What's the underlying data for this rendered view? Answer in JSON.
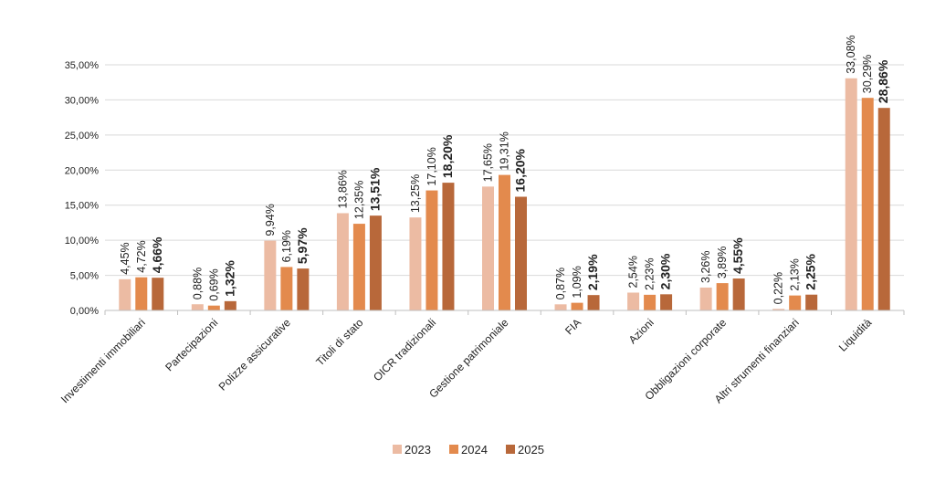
{
  "chart_data": {
    "type": "bar",
    "categories": [
      "Investimenti immobiliari",
      "Partecipazioni",
      "Polizze assicurative",
      "Titoli di stato",
      "OICR tradizionali",
      "Gestione patrimoniale",
      "FIA",
      "Azioni",
      "Obbligazioni corporate",
      "Altri strumenti finanziari",
      "Liquidità"
    ],
    "series": [
      {
        "name": "2023",
        "color": "#ecbba3",
        "values": [
          4.45,
          0.88,
          9.94,
          13.86,
          13.25,
          17.65,
          0.87,
          2.54,
          3.26,
          0.22,
          33.08
        ],
        "labels": [
          "4,45%",
          "0,88%",
          "9,94%",
          "13,86%",
          "13,25%",
          "17,65%",
          "0,87%",
          "2,54%",
          "3,26%",
          "0,22%",
          "33,08%"
        ]
      },
      {
        "name": "2024",
        "color": "#e38a4d",
        "values": [
          4.72,
          0.69,
          6.19,
          12.35,
          17.1,
          19.31,
          1.09,
          2.23,
          3.89,
          2.13,
          30.29
        ],
        "labels": [
          "4,72%",
          "0,69%",
          "6,19%",
          "12,35%",
          "17,10%",
          "19,31%",
          "1,09%",
          "2,23%",
          "3,89%",
          "2,13%",
          "30,29%"
        ]
      },
      {
        "name": "2025",
        "color": "#b8683a",
        "values": [
          4.66,
          1.32,
          5.97,
          13.51,
          18.2,
          16.2,
          2.19,
          2.3,
          4.55,
          2.25,
          28.86
        ],
        "labels": [
          "4,66%",
          "1,32%",
          "5,97%",
          "13,51%",
          "18,20%",
          "16,20%",
          "2,19%",
          "2,30%",
          "4,55%",
          "2,25%",
          "28,86%"
        ]
      }
    ],
    "ylim": [
      0,
      35
    ],
    "yticks": [
      0,
      5,
      10,
      15,
      20,
      25,
      30,
      35
    ],
    "ytick_labels": [
      "0,00%",
      "5,00%",
      "10,00%",
      "15,00%",
      "20,00%",
      "25,00%",
      "30,00%",
      "35,00%"
    ],
    "grid": true,
    "legend_position": "bottom",
    "title": "",
    "xlabel": "",
    "ylabel": ""
  }
}
